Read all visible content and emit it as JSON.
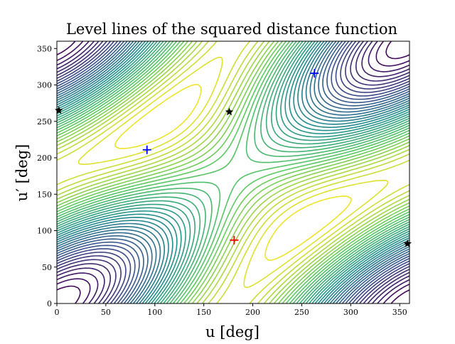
{
  "chart_data": {
    "type": "contour",
    "title": "Level lines of the squared distance function",
    "xlabel": "u [deg]",
    "ylabel": "u′ [deg]",
    "xlim": [
      0,
      360
    ],
    "ylim": [
      0,
      360
    ],
    "xticks": [
      0,
      50,
      100,
      150,
      200,
      250,
      300,
      350
    ],
    "yticks": [
      0,
      50,
      100,
      150,
      200,
      250,
      300,
      350
    ],
    "colormap": [
      "#440154",
      "#3b528b",
      "#21908d",
      "#5dc963",
      "#fde725"
    ],
    "levels": 40,
    "markers": [
      {
        "kind": "plus",
        "color": "#ff0000",
        "x": 181,
        "y": 87
      },
      {
        "kind": "plus",
        "color": "#0000ff",
        "x": 92,
        "y": 211
      },
      {
        "kind": "plus",
        "color": "#0000ff",
        "x": 263,
        "y": 316
      },
      {
        "kind": "star",
        "color": "#000000",
        "x": 176,
        "y": 263
      },
      {
        "kind": "star",
        "color": "#000000",
        "x": 2,
        "y": 265
      },
      {
        "kind": "star",
        "color": "#000000",
        "x": 358,
        "y": 82
      }
    ]
  }
}
